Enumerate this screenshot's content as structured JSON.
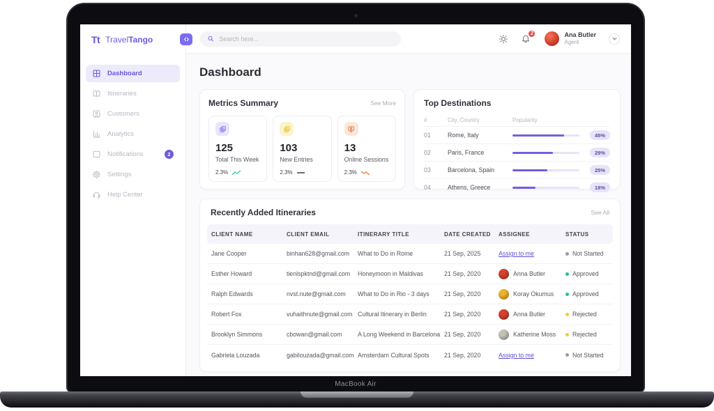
{
  "device": {
    "label": "MacBook Air"
  },
  "brand": {
    "mark": "Tt",
    "name_light": "Travel",
    "name_bold": "Tango"
  },
  "topbar": {
    "search_placeholder": "Search here...",
    "notifications_badge": "2",
    "user": {
      "name": "Ana Butler",
      "role": "Agent",
      "avatar_color": "#d2412e"
    }
  },
  "sidebar": {
    "items": [
      {
        "label": "Dashboard"
      },
      {
        "label": "Itineraries"
      },
      {
        "label": "Customers"
      },
      {
        "label": "Analytics"
      },
      {
        "label": "Notifications",
        "badge": "2"
      },
      {
        "label": "Settings"
      },
      {
        "label": "Help Center"
      }
    ]
  },
  "page": {
    "title": "Dashboard"
  },
  "metrics": {
    "title": "Metrics Summary",
    "see_more": "See More",
    "cards": [
      {
        "value": "125",
        "label": "Total This Week",
        "change": "2.3%",
        "trend": "up",
        "trend_color": "#35c98e",
        "icon_bg": "#eae5fb",
        "icon_color": "#7a63e8"
      },
      {
        "value": "103",
        "label": "New Entries",
        "change": "2.3%",
        "trend": "flat",
        "trend_color": "#3a3a44",
        "icon_bg": "#faf3cd",
        "icon_color": "#dfc022"
      },
      {
        "value": "13",
        "label": "Online Sessions",
        "change": "2.3%",
        "trend": "down",
        "trend_color": "#e8763d",
        "icon_bg": "#fbe7dc",
        "icon_color": "#e2703a"
      }
    ]
  },
  "destinations": {
    "title": "Top Destinations",
    "col_rank": "#",
    "col_city": "City, Country",
    "col_popularity": "Popularity",
    "bar_color": "#6f5fe0",
    "rows": [
      {
        "rank": "01",
        "city": "Rome, Italy",
        "percent": "45%",
        "fill": 77
      },
      {
        "rank": "02",
        "city": "Paris, France",
        "percent": "29%",
        "fill": 60
      },
      {
        "rank": "03",
        "city": "Barcelona, Spain",
        "percent": "25%",
        "fill": 52
      },
      {
        "rank": "04",
        "city": "Athens, Greece",
        "percent": "18%",
        "fill": 34
      }
    ]
  },
  "itineraries": {
    "title": "Recently Added Itineraries",
    "see_all": "See All",
    "columns": [
      "CLIENT NAME",
      "CLIENT EMAIL",
      "ITINERARY TITLE",
      "DATE CREATED",
      "ASSIGNEE",
      "STATUS"
    ],
    "rows": [
      {
        "name": "Jane Cooper",
        "email": "binhan628@gmail.com",
        "title": "What to Do in Rome",
        "date": "21 Sep, 2025",
        "assignee": "Assign to me",
        "status": "Not Started",
        "dot": "#9a9aa4"
      },
      {
        "name": "Esther Howard",
        "email": "tienlspktnd@gmail.com",
        "title": "Honeymoon in Maldivas",
        "date": "21 Sep, 2020",
        "assignee": "Anna Butler",
        "avatar_color": "#d8432c",
        "status": "Approved",
        "dot": "#2bc48a"
      },
      {
        "name": "Ralph Edwards",
        "email": "nvst.nute@gmail.com",
        "title": "What to Do in Rio - 3 days",
        "date": "21 Sep, 2020",
        "assignee": "Koray Okumus",
        "avatar_color": "#f0b428",
        "status": "Approved",
        "dot": "#2bc48a"
      },
      {
        "name": "Robert Fox",
        "email": "vuhaithnute@gmail.com",
        "title": "Cultural Itinerary in Berlin",
        "date": "21 Sep, 2020",
        "assignee": "Anna Butler",
        "avatar_color": "#d8432c",
        "status": "Rejected",
        "dot": "#f2cb3e"
      },
      {
        "name": "Brooklyn Simmons",
        "email": "cbowan@gmail.com",
        "title": "A Long Weekend in Barcelona",
        "date": "21 Sep, 2020",
        "assignee": "Katherine Moss",
        "avatar_color": "#c9c2b8",
        "status": "Rejected",
        "dot": "#f2cb3e"
      },
      {
        "name": "Gabriela Louzada",
        "email": "gabilouzada@gmail.com",
        "title": "Amsterdam Cultural Spots",
        "date": "21 Sep, 2020",
        "assignee": "Assign to me",
        "status": "Not Started",
        "dot": "#9a9aa4"
      }
    ]
  },
  "chart_data": {
    "type": "bar",
    "title": "Top Destinations",
    "categories": [
      "Rome, Italy",
      "Paris, France",
      "Barcelona, Spain",
      "Athens, Greece"
    ],
    "values": [
      45,
      29,
      25,
      18
    ],
    "value_labels": [
      "45%",
      "29%",
      "25%",
      "18%"
    ],
    "xlabel": "Popularity",
    "ylabel": "City, Country",
    "xlim": [
      0,
      100
    ],
    "legend": false
  }
}
